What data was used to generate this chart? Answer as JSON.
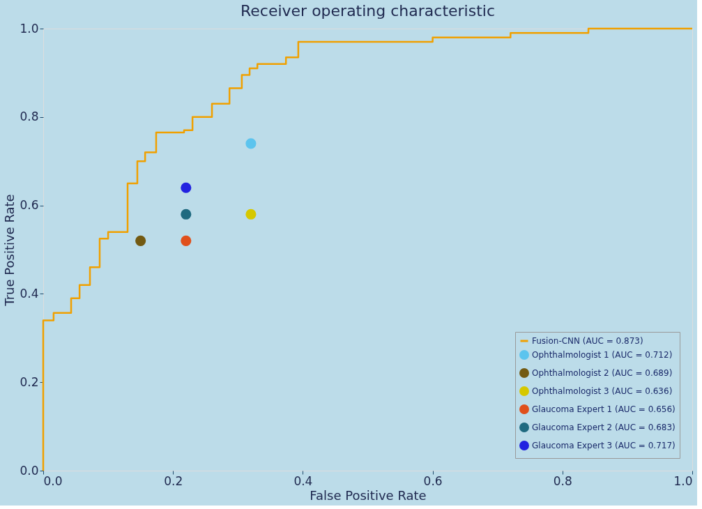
{
  "chart_data": {
    "type": "step",
    "title": "Receiver operating characteristic",
    "xlabel": "False Positive Rate",
    "ylabel": "True Positive Rate",
    "xlim": [
      0.0,
      1.0
    ],
    "ylim": [
      0.0,
      1.0
    ],
    "xticks": [
      {
        "value": 0,
        "label": "0.0"
      },
      {
        "value": 0.2,
        "label": "0.2"
      },
      {
        "value": 0.4,
        "label": "0.4"
      },
      {
        "value": 0.6,
        "label": "0.6"
      },
      {
        "value": 0.8,
        "label": "0.8"
      },
      {
        "value": 1,
        "label": "1.0"
      }
    ],
    "yticks": [
      {
        "value": 0,
        "label": "0.0"
      },
      {
        "value": 0.2,
        "label": "0.2"
      },
      {
        "value": 0.4,
        "label": "0.4"
      },
      {
        "value": 0.6,
        "label": "0.6"
      },
      {
        "value": 0.8,
        "label": "0.8"
      },
      {
        "value": 1,
        "label": "1.0"
      }
    ],
    "grid": false,
    "legend": "bottom right",
    "series": [
      {
        "name": "Fusion-CNN (AUC = 0.873)",
        "color": "#f0a000",
        "marker": "none",
        "x": [
          0,
          0,
          0.016,
          0.043,
          0.056,
          0.072,
          0.087,
          0.1,
          0.13,
          0.145,
          0.157,
          0.174,
          0.217,
          0.23,
          0.26,
          0.287,
          0.306,
          0.318,
          0.33,
          0.374,
          0.393,
          0.6,
          0.72,
          0.84,
          1.0
        ],
        "values": [
          0,
          0.34,
          0.357,
          0.39,
          0.42,
          0.46,
          0.525,
          0.54,
          0.65,
          0.7,
          0.72,
          0.765,
          0.77,
          0.8,
          0.83,
          0.865,
          0.895,
          0.91,
          0.92,
          0.935,
          0.97,
          0.98,
          0.99,
          1.0,
          1.0
        ]
      },
      {
        "name": "Ophthalmologist 1 (AUC = 0.712)",
        "type": "scatter",
        "marker": "circle",
        "color": "#5cc4ee",
        "x": [
          0.32
        ],
        "values": [
          0.74
        ]
      },
      {
        "name": "Ophthalmologist 2 (AUC = 0.689)",
        "type": "scatter",
        "marker": "circle",
        "color": "#735a12",
        "x": [
          0.15
        ],
        "values": [
          0.52
        ]
      },
      {
        "name": "Ophthalmologist 3 (AUC = 0.636)",
        "type": "scatter",
        "marker": "circle",
        "color": "#d6c800",
        "x": [
          0.32
        ],
        "values": [
          0.58
        ]
      },
      {
        "name": "Glaucoma Expert 1 (AUC = 0.656)",
        "type": "scatter",
        "marker": "circle",
        "color": "#e0501c",
        "x": [
          0.22
        ],
        "values": [
          0.52
        ]
      },
      {
        "name": "Glaucoma Expert 2 (AUC = 0.683)",
        "type": "scatter",
        "marker": "circle",
        "color": "#1f6a80",
        "x": [
          0.22
        ],
        "values": [
          0.58
        ]
      },
      {
        "name": "Glaucoma Expert 3 (AUC = 0.717)",
        "type": "scatter",
        "marker": "circle",
        "color": "#2222e0",
        "x": [
          0.22
        ],
        "values": [
          0.64
        ]
      }
    ]
  }
}
